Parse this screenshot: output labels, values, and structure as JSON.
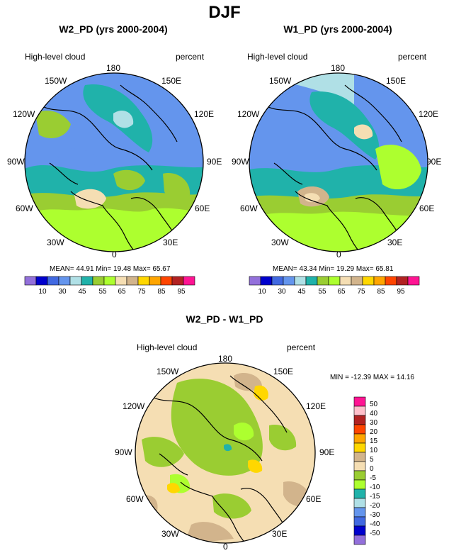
{
  "page": {
    "title": "DJF"
  },
  "palettes": {
    "abs": [
      "#9370db",
      "#0000cd",
      "#4169e1",
      "#6495ed",
      "#b0e0e6",
      "#20b2aa",
      "#9acd32",
      "#adff2f",
      "#f5deb3",
      "#d2b48c",
      "#ffd700",
      "#ffa500",
      "#ff4500",
      "#b22222",
      "#ff1493"
    ],
    "diff": [
      "#9370db",
      "#0000cd",
      "#4169e1",
      "#6495ed",
      "#b0e0e6",
      "#20b2aa",
      "#adff2f",
      "#9acd32",
      "#f5deb3",
      "#d2b48c",
      "#ffd700",
      "#ffa500",
      "#ff4500",
      "#b22222",
      "#ffc0cb",
      "#ff1493"
    ]
  },
  "panels": [
    {
      "title": "W2_PD (yrs 2000-2004)",
      "field_label": "High-level cloud",
      "units": "percent",
      "stats": "MEAN=  44.91  Min=  19.48  Max=  65.67",
      "colorbar_ticks": [
        "10",
        "30",
        "45",
        "55",
        "65",
        "75",
        "85",
        "95"
      ],
      "lon_labels": {
        "n": "180",
        "nw1": "150W",
        "ne1": "150E",
        "w1": "120W",
        "e1": "120E",
        "w2": "90W",
        "e2": "90E",
        "w3": "60W",
        "e3": "60E",
        "sw": "30W",
        "se": "30E",
        "s": "0"
      }
    },
    {
      "title": "W1_PD (yrs 2000-2004)",
      "field_label": "High-level cloud",
      "units": "percent",
      "stats": "MEAN=  43.34  Min=  19.29  Max=  65.81",
      "colorbar_ticks": [
        "10",
        "30",
        "45",
        "55",
        "65",
        "75",
        "85",
        "95"
      ],
      "lon_labels": {
        "n": "180",
        "nw1": "150W",
        "ne1": "150E",
        "w1": "120W",
        "e1": "120E",
        "w2": "90W",
        "e2": "90E",
        "w3": "60W",
        "e3": "60E",
        "sw": "30W",
        "se": "30E",
        "s": "0"
      }
    },
    {
      "title": "W2_PD - W1_PD",
      "field_label": "High-level cloud",
      "units": "percent",
      "stats": "MIN = -12.39 MAX =  14.16",
      "colorbar_ticks": [
        "50",
        "40",
        "30",
        "20",
        "15",
        "10",
        "5",
        "0",
        "-5",
        "-10",
        "-15",
        "-20",
        "-30",
        "-40",
        "-50"
      ],
      "lon_labels": {
        "n": "180",
        "nw1": "150W",
        "ne1": "150E",
        "w1": "120W",
        "e1": "120E",
        "w2": "90W",
        "e2": "90E",
        "w3": "60W",
        "e3": "60E",
        "sw": "30W",
        "se": "30E",
        "s": "0"
      }
    }
  ]
}
